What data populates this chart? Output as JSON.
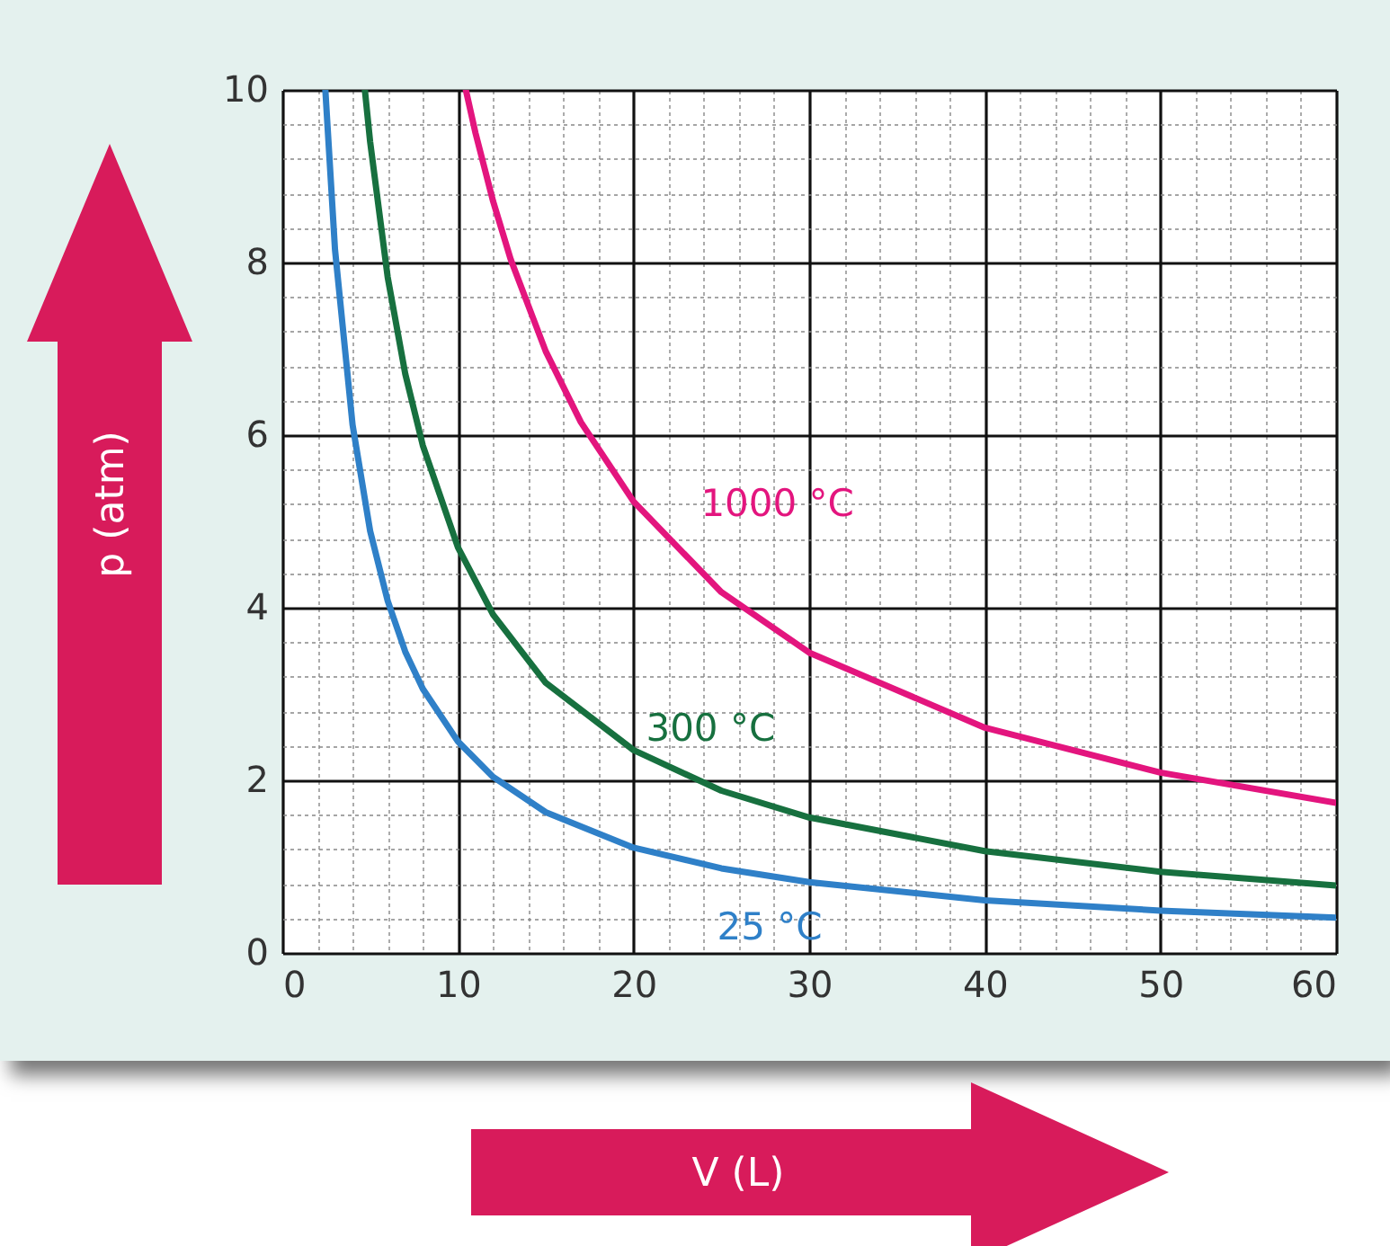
{
  "chart_data": {
    "type": "line",
    "xlabel": "V (L)",
    "ylabel": "p (atm)",
    "xlim": [
      0,
      60
    ],
    "xticks": [
      0,
      10,
      20,
      30,
      40,
      50,
      60
    ],
    "ylim": [
      0,
      10
    ],
    "yticks": [
      0,
      2,
      4,
      6,
      8,
      10
    ],
    "grid": true,
    "marker": "none",
    "line_style": "solid",
    "series": [
      {
        "name": "25 °C",
        "color": "#2f80c8",
        "x": [
          2.45,
          3,
          4,
          5,
          6,
          7,
          8,
          10,
          12,
          15,
          20,
          25,
          30,
          40,
          50,
          60
        ],
        "values": [
          10.0,
          8.15,
          6.12,
          4.89,
          4.08,
          3.49,
          3.06,
          2.45,
          2.04,
          1.63,
          1.22,
          0.98,
          0.82,
          0.61,
          0.49,
          0.41
        ]
      },
      {
        "name": "300 °C",
        "color": "#17703f",
        "x": [
          4.7,
          5,
          6,
          7,
          8,
          10,
          12,
          15,
          20,
          25,
          30,
          40,
          50,
          60
        ],
        "values": [
          10.0,
          9.4,
          7.83,
          6.71,
          5.88,
          4.7,
          3.92,
          3.13,
          2.35,
          1.88,
          1.57,
          1.18,
          0.94,
          0.78
        ]
      },
      {
        "name": "1000 °C",
        "color": "#e3157e",
        "x": [
          10.45,
          11,
          12,
          13,
          15,
          17,
          20,
          25,
          30,
          40,
          50,
          60
        ],
        "values": [
          10.0,
          9.5,
          8.71,
          8.04,
          6.97,
          6.15,
          5.23,
          4.18,
          3.48,
          2.61,
          2.09,
          1.74
        ]
      }
    ]
  }
}
